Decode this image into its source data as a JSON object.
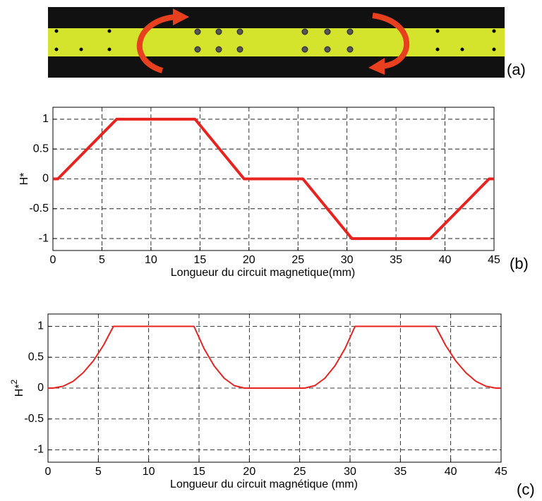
{
  "figure": {
    "panel_labels": [
      "(a)",
      "(b)",
      "(c)"
    ]
  },
  "chart_data": [
    {
      "type": "line",
      "xlabel": "Longueur du circuit magnetique(mm)",
      "ylabel": "H*",
      "x": [
        0,
        0.5,
        6.5,
        14.5,
        19.5,
        25.5,
        30.5,
        38.5,
        44.5,
        45
      ],
      "values": [
        0,
        0,
        1,
        1,
        0,
        0,
        -1,
        -1,
        0,
        0
      ],
      "color": "#e8231f",
      "xlim": [
        0,
        45
      ],
      "ylim": [
        -1.2,
        1.2
      ],
      "xticks": [
        0,
        5,
        10,
        15,
        20,
        25,
        30,
        35,
        40,
        45
      ],
      "yticks": [
        -1,
        -0.5,
        0,
        0.5,
        1
      ],
      "grid": true
    },
    {
      "type": "line",
      "xlabel": "Longueur du circuit magnétique (mm)",
      "ylabel": "H*",
      "ylabel_exponent": "2",
      "x": [
        0,
        0.5,
        1.5,
        2.5,
        3.5,
        4.5,
        5.5,
        6.5,
        14.5,
        15.5,
        16.5,
        17.5,
        18.5,
        19.5,
        25.5,
        26.5,
        27.5,
        28.5,
        29.5,
        30.5,
        38.5,
        39.5,
        40.5,
        41.5,
        42.5,
        43.5,
        44.5,
        45
      ],
      "values": [
        0,
        0,
        0.03,
        0.11,
        0.25,
        0.44,
        0.69,
        1,
        1,
        0.64,
        0.36,
        0.16,
        0.04,
        0,
        0,
        0.04,
        0.16,
        0.36,
        0.64,
        1,
        1,
        0.69,
        0.44,
        0.25,
        0.11,
        0.03,
        0,
        0
      ],
      "color": "#e8231f",
      "xlim": [
        0,
        45
      ],
      "ylim": [
        -1.2,
        1.2
      ],
      "xticks": [
        0,
        5,
        10,
        15,
        20,
        25,
        30,
        35,
        40,
        45
      ],
      "yticks": [
        -1,
        -0.5,
        0,
        0.5,
        1
      ],
      "grid": true
    }
  ]
}
